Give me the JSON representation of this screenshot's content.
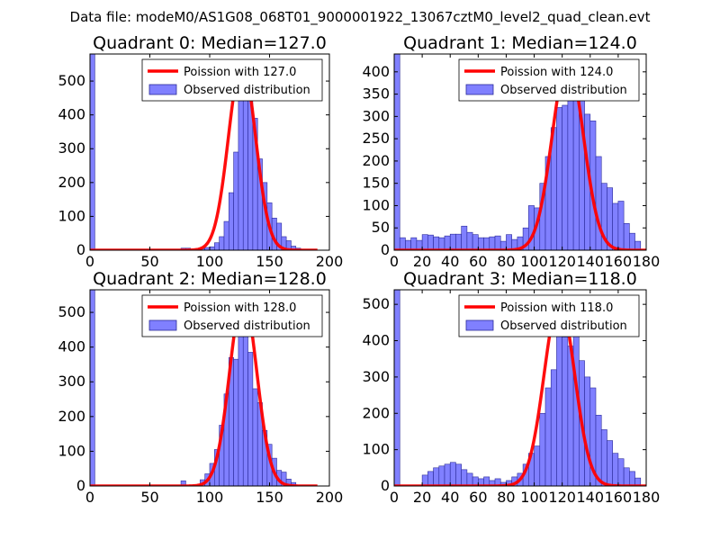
{
  "figure": {
    "suptitle": "Data file: modeM0/AS1G08_068T01_9000001922_13067cztM0_level2_quad_clean.evt",
    "colors": {
      "bar_fill": "#8080ff",
      "bar_edge": "#2a2a99",
      "poisson_line": "#ff0000",
      "axes": "#000000"
    }
  },
  "chart_data": [
    {
      "type": "bar",
      "title": "Quadrant 0: Median=127.0",
      "xlim": [
        0,
        200
      ],
      "ylim": [
        0,
        580
      ],
      "xticks": [
        0,
        50,
        100,
        150,
        200
      ],
      "yticks": [
        0,
        100,
        200,
        300,
        400,
        500
      ],
      "bin_width": 4,
      "series": [
        {
          "name": "Poission with 127.0",
          "kind": "poisson",
          "mean": 127.0,
          "peak": 556,
          "x_range": [
            0,
            190
          ]
        },
        {
          "name": "Observed distribution",
          "kind": "histogram",
          "bins": [
            [
              0,
              580
            ],
            [
              76,
              6
            ],
            [
              80,
              6
            ],
            [
              88,
              4
            ],
            [
              92,
              4
            ],
            [
              96,
              8
            ],
            [
              100,
              10
            ],
            [
              104,
              22
            ],
            [
              108,
              40
            ],
            [
              112,
              85
            ],
            [
              116,
              170
            ],
            [
              120,
              290
            ],
            [
              124,
              450
            ],
            [
              128,
              540
            ],
            [
              132,
              520
            ],
            [
              136,
              390
            ],
            [
              140,
              270
            ],
            [
              144,
              200
            ],
            [
              148,
              140
            ],
            [
              152,
              95
            ],
            [
              156,
              80
            ],
            [
              160,
              40
            ],
            [
              164,
              28
            ],
            [
              168,
              12
            ],
            [
              172,
              6
            ]
          ]
        }
      ]
    },
    {
      "type": "bar",
      "title": "Quadrant 1: Median=124.0",
      "xlim": [
        0,
        180
      ],
      "ylim": [
        0,
        440
      ],
      "xticks": [
        0,
        20,
        40,
        60,
        80,
        100,
        120,
        140,
        160,
        180
      ],
      "yticks": [
        0,
        50,
        100,
        150,
        200,
        250,
        300,
        350,
        400
      ],
      "bin_width": 4,
      "series": [
        {
          "name": "Poission with 124.0",
          "kind": "poisson",
          "mean": 124.0,
          "peak": 425,
          "x_range": [
            0,
            180
          ]
        },
        {
          "name": "Observed distribution",
          "kind": "histogram",
          "bins": [
            [
              0,
              440
            ],
            [
              4,
              28
            ],
            [
              8,
              22
            ],
            [
              12,
              28
            ],
            [
              16,
              22
            ],
            [
              20,
              35
            ],
            [
              24,
              34
            ],
            [
              28,
              30
            ],
            [
              32,
              28
            ],
            [
              36,
              32
            ],
            [
              40,
              36
            ],
            [
              44,
              36
            ],
            [
              48,
              54
            ],
            [
              52,
              40
            ],
            [
              56,
              35
            ],
            [
              60,
              28
            ],
            [
              64,
              28
            ],
            [
              68,
              30
            ],
            [
              72,
              32
            ],
            [
              76,
              20
            ],
            [
              80,
              35
            ],
            [
              84,
              24
            ],
            [
              88,
              30
            ],
            [
              92,
              50
            ],
            [
              96,
              100
            ],
            [
              100,
              95
            ],
            [
              104,
              150
            ],
            [
              108,
              210
            ],
            [
              112,
              275
            ],
            [
              116,
              320
            ],
            [
              120,
              325
            ],
            [
              124,
              410
            ],
            [
              128,
              425
            ],
            [
              132,
              375
            ],
            [
              136,
              305
            ],
            [
              140,
              290
            ],
            [
              144,
              210
            ],
            [
              148,
              150
            ],
            [
              152,
              140
            ],
            [
              156,
              105
            ],
            [
              160,
              110
            ],
            [
              164,
              60
            ],
            [
              168,
              38
            ],
            [
              172,
              20
            ]
          ]
        }
      ]
    },
    {
      "type": "bar",
      "title": "Quadrant 2: Median=128.0",
      "xlim": [
        0,
        200
      ],
      "ylim": [
        0,
        565
      ],
      "xticks": [
        0,
        50,
        100,
        150,
        200
      ],
      "yticks": [
        0,
        100,
        200,
        300,
        400,
        500
      ],
      "bin_width": 4,
      "series": [
        {
          "name": "Poission with 128.0",
          "kind": "poisson",
          "mean": 128.0,
          "peak": 545,
          "x_range": [
            0,
            190
          ]
        },
        {
          "name": "Observed distribution",
          "kind": "histogram",
          "bins": [
            [
              0,
              565
            ],
            [
              76,
              15
            ],
            [
              92,
              18
            ],
            [
              96,
              35
            ],
            [
              100,
              65
            ],
            [
              104,
              105
            ],
            [
              108,
              175
            ],
            [
              112,
              265
            ],
            [
              116,
              370
            ],
            [
              120,
              365
            ],
            [
              124,
              540
            ],
            [
              128,
              520
            ],
            [
              132,
              385
            ],
            [
              136,
              280
            ],
            [
              140,
              240
            ],
            [
              144,
              160
            ],
            [
              148,
              120
            ],
            [
              152,
              80
            ],
            [
              156,
              45
            ],
            [
              160,
              40
            ],
            [
              164,
              20
            ],
            [
              168,
              10
            ]
          ]
        }
      ]
    },
    {
      "type": "bar",
      "title": "Quadrant 3: Median=118.0",
      "xlim": [
        0,
        180
      ],
      "ylim": [
        0,
        540
      ],
      "xticks": [
        0,
        20,
        40,
        60,
        80,
        100,
        120,
        140,
        160,
        180
      ],
      "yticks": [
        0,
        100,
        200,
        300,
        400,
        500
      ],
      "bin_width": 4,
      "series": [
        {
          "name": "Poission with 118.0",
          "kind": "poisson",
          "mean": 118.0,
          "peak": 510,
          "x_range": [
            0,
            180
          ]
        },
        {
          "name": "Observed distribution",
          "kind": "histogram",
          "bins": [
            [
              0,
              540
            ],
            [
              20,
              30
            ],
            [
              24,
              40
            ],
            [
              28,
              50
            ],
            [
              32,
              55
            ],
            [
              36,
              60
            ],
            [
              40,
              65
            ],
            [
              44,
              60
            ],
            [
              48,
              45
            ],
            [
              52,
              35
            ],
            [
              56,
              25
            ],
            [
              60,
              20
            ],
            [
              64,
              25
            ],
            [
              68,
              15
            ],
            [
              72,
              20
            ],
            [
              76,
              10
            ],
            [
              80,
              15
            ],
            [
              84,
              25
            ],
            [
              88,
              35
            ],
            [
              92,
              60
            ],
            [
              96,
              90
            ],
            [
              100,
              110
            ],
            [
              104,
              200
            ],
            [
              108,
              270
            ],
            [
              112,
              320
            ],
            [
              116,
              440
            ],
            [
              120,
              410
            ],
            [
              124,
              385
            ],
            [
              128,
              495
            ],
            [
              132,
              345
            ],
            [
              136,
              300
            ],
            [
              140,
              270
            ],
            [
              144,
              195
            ],
            [
              148,
              155
            ],
            [
              152,
              125
            ],
            [
              156,
              90
            ],
            [
              160,
              75
            ],
            [
              164,
              50
            ],
            [
              168,
              40
            ],
            [
              172,
              22
            ]
          ]
        }
      ]
    }
  ]
}
